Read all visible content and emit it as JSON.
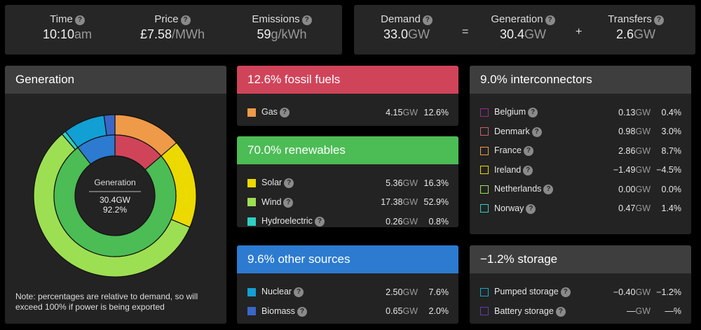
{
  "summary": {
    "time": {
      "label": "Time",
      "value": "10:10",
      "unit": "am"
    },
    "price": {
      "label": "Price",
      "value": "£7.58",
      "unit": "/MWh"
    },
    "emissions": {
      "label": "Emissions",
      "value": "59",
      "unit": "g/kWh"
    },
    "demand": {
      "label": "Demand",
      "value": "33.0",
      "unit": "GW"
    },
    "generation": {
      "label": "Generation",
      "value": "30.4",
      "unit": "GW"
    },
    "transfers": {
      "label": "Transfers",
      "value": "2.6",
      "unit": "GW"
    },
    "equals": "=",
    "plus": "+",
    "help": "?"
  },
  "generation_panel": {
    "title": "Generation",
    "center_label": "Generation",
    "center_gw": "30.4GW",
    "center_pct": "92.2%",
    "note": "Note: percentages are relative to demand, so will exceed 100% if power is being exported"
  },
  "chart_data": {
    "type": "pie",
    "inner": [
      {
        "name": "fossil fuels",
        "value": 12.6,
        "color": "#d0445a"
      },
      {
        "name": "renewables",
        "value": 70.0,
        "color": "#4cbc55"
      },
      {
        "name": "other sources",
        "value": 9.6,
        "color": "#2c7bd0"
      }
    ],
    "outer": [
      {
        "name": "Gas",
        "value": 12.6,
        "color": "#ef9a48"
      },
      {
        "name": "Solar",
        "value": 16.3,
        "color": "#ecd900"
      },
      {
        "name": "Wind",
        "value": 52.9,
        "color": "#9ddf52"
      },
      {
        "name": "Hydroelectric",
        "value": 0.8,
        "color": "#2fcfc2"
      },
      {
        "name": "Nuclear",
        "value": 7.6,
        "color": "#129fd4"
      },
      {
        "name": "Biomass",
        "value": 2.0,
        "color": "#3a66c8"
      }
    ]
  },
  "panels": [
    {
      "id": "fossil",
      "title": "12.6% fossil fuels",
      "color": "#d0445a",
      "hollow": false,
      "rows": [
        {
          "name": "Gas",
          "gw": "4.15",
          "pct": "12.6%",
          "color": "#ef9a48"
        }
      ]
    },
    {
      "id": "renewables",
      "title": "70.0% renewables",
      "color": "#4cbc55",
      "hollow": false,
      "rows": [
        {
          "name": "Solar",
          "gw": "5.36",
          "pct": "16.3%",
          "color": "#ecd900"
        },
        {
          "name": "Wind",
          "gw": "17.38",
          "pct": "52.9%",
          "color": "#9ddf52"
        },
        {
          "name": "Hydroelectric",
          "gw": "0.26",
          "pct": "0.8%",
          "color": "#2fcfc2"
        }
      ]
    },
    {
      "id": "other",
      "title": "9.6% other sources",
      "color": "#2c7bd0",
      "hollow": false,
      "rows": [
        {
          "name": "Nuclear",
          "gw": "2.50",
          "pct": "7.6%",
          "color": "#129fd4"
        },
        {
          "name": "Biomass",
          "gw": "0.65",
          "pct": "2.0%",
          "color": "#3a66c8"
        }
      ]
    },
    {
      "id": "interconnectors",
      "title": "9.0% interconnectors",
      "color": "#3e3e3e",
      "hollow": true,
      "rows": [
        {
          "name": "Belgium",
          "gw": "0.13",
          "pct": "0.4%",
          "color": "#9a2a8a"
        },
        {
          "name": "Denmark",
          "gw": "0.98",
          "pct": "3.0%",
          "color": "#c8606a"
        },
        {
          "name": "France",
          "gw": "2.86",
          "pct": "8.7%",
          "color": "#ef9a48"
        },
        {
          "name": "Ireland",
          "gw": "−1.49",
          "pct": "−4.5%",
          "color": "#ecd900"
        },
        {
          "name": "Netherlands",
          "gw": "0.00",
          "pct": "0.0%",
          "color": "#9ddf52"
        },
        {
          "name": "Norway",
          "gw": "0.47",
          "pct": "1.4%",
          "color": "#2fcfc2"
        }
      ]
    },
    {
      "id": "storage",
      "title": "−1.2% storage",
      "color": "#3e3e3e",
      "hollow": true,
      "rows": [
        {
          "name": "Pumped storage",
          "gw": "−0.40",
          "pct": "−1.2%",
          "color": "#12a8c8"
        },
        {
          "name": "Battery storage",
          "gw": "—",
          "pct": "—%",
          "color": "#6a3aa8"
        }
      ]
    }
  ],
  "unit_gw": "GW"
}
